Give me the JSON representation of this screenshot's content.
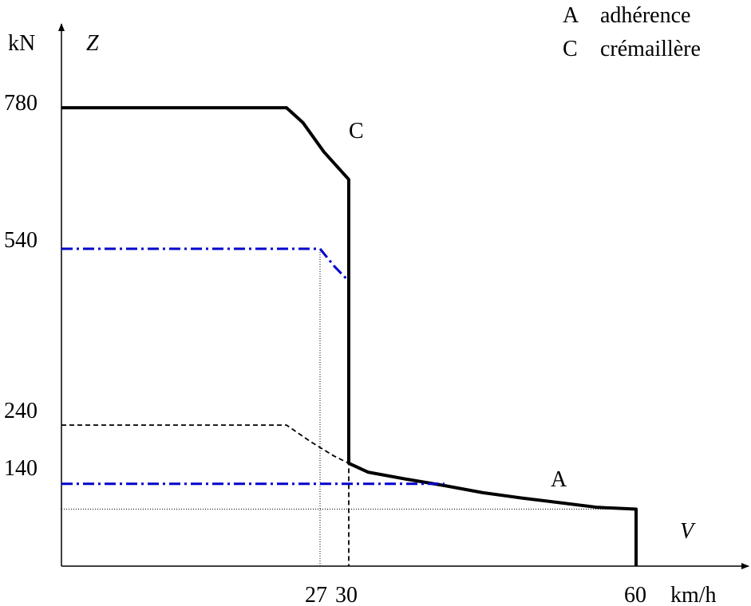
{
  "chart_data": {
    "type": "line",
    "y_unit": "kN",
    "y_symbol": "Z",
    "x_unit": "km/h",
    "x_symbol": "V",
    "y_ticks": [
      "780",
      "540",
      "240",
      "140"
    ],
    "x_ticks": [
      "27",
      "30",
      "60"
    ],
    "legend": [
      {
        "key": "A",
        "text": "adhérence"
      },
      {
        "key": "C",
        "text": "crémaillère"
      }
    ],
    "series": [
      {
        "name": "C",
        "style": "solid-thick",
        "color": "#000000",
        "points": [
          [
            0,
            780
          ],
          [
            23.5,
            780
          ],
          [
            25.2,
            755
          ],
          [
            27.4,
            705
          ],
          [
            30,
            658
          ],
          [
            30,
            175
          ],
          [
            32,
            160
          ],
          [
            36,
            148
          ],
          [
            40,
            137
          ],
          [
            44,
            125
          ],
          [
            48,
            116
          ],
          [
            52,
            108
          ],
          [
            56,
            100
          ],
          [
            60,
            97
          ],
          [
            60,
            0
          ]
        ]
      },
      {
        "name": "A",
        "style": "dashed",
        "color": "#000000",
        "points": [
          [
            0,
            240
          ],
          [
            23.5,
            240
          ],
          [
            26,
            212
          ],
          [
            28.5,
            187
          ],
          [
            30,
            175
          ],
          [
            30,
            0
          ]
        ]
      },
      {
        "style": "dash-dot",
        "color": "#0000cc",
        "points": [
          [
            0,
            540
          ],
          [
            27,
            540
          ],
          [
            28.5,
            510
          ],
          [
            30,
            485
          ]
        ]
      },
      {
        "style": "dash-dot",
        "color": "#0000cc",
        "points": [
          [
            0,
            140
          ],
          [
            40,
            140
          ]
        ]
      }
    ],
    "reference_lines": [
      {
        "orientation": "vertical",
        "x": 27,
        "y_from": 0,
        "y_to": 540,
        "style": "dotted"
      },
      {
        "orientation": "horizontal",
        "y": 97,
        "x_from": 0,
        "x_to": 60,
        "style": "dotted"
      }
    ],
    "annotations": [
      {
        "text": "C",
        "x": 31,
        "y": 740
      },
      {
        "text": "A",
        "x": 52,
        "y": 140
      }
    ],
    "xlim": [
      0,
      72
    ],
    "ylim": [
      0,
      1000
    ],
    "grid": false
  }
}
